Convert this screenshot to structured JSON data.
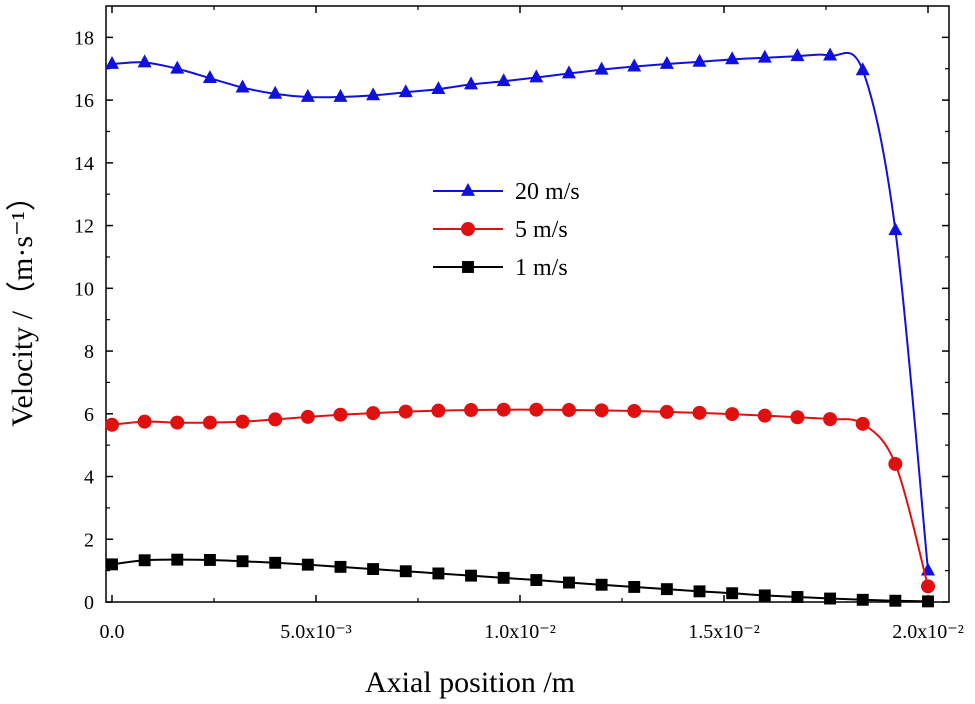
{
  "chart_data": {
    "type": "line",
    "title": "",
    "xlabel": "Axial position  /m",
    "ylabel": "Velocity  /（m·s⁻¹）",
    "xlim": [
      0,
      0.02
    ],
    "ylim": [
      0,
      19
    ],
    "x_ticks": [
      {
        "value": 0,
        "label": "0.0"
      },
      {
        "value": 0.005,
        "label": "5.0x10⁻³"
      },
      {
        "value": 0.01,
        "label": "1.0x10⁻²"
      },
      {
        "value": 0.015,
        "label": "1.5x10⁻²"
      },
      {
        "value": 0.02,
        "label": "2.0x10⁻²"
      }
    ],
    "y_ticks": [
      {
        "value": 0,
        "label": "0"
      },
      {
        "value": 2,
        "label": "2"
      },
      {
        "value": 4,
        "label": "4"
      },
      {
        "value": 6,
        "label": "6"
      },
      {
        "value": 8,
        "label": "8"
      },
      {
        "value": 10,
        "label": "10"
      },
      {
        "value": 12,
        "label": "12"
      },
      {
        "value": 14,
        "label": "14"
      },
      {
        "value": 16,
        "label": "16"
      },
      {
        "value": 18,
        "label": "18"
      }
    ],
    "legend_position": "center",
    "series": [
      {
        "name": "20 m/s",
        "color": "#1010e0",
        "marker": "triangle",
        "points": [
          [
            0,
            17.15
          ],
          [
            0.0008,
            17.2
          ],
          [
            0.0016,
            17.0
          ],
          [
            0.0024,
            16.7
          ],
          [
            0.0032,
            16.4
          ],
          [
            0.004,
            16.2
          ],
          [
            0.0048,
            16.1
          ],
          [
            0.0056,
            16.1
          ],
          [
            0.0064,
            16.15
          ],
          [
            0.0072,
            16.25
          ],
          [
            0.008,
            16.35
          ],
          [
            0.0088,
            16.5
          ],
          [
            0.0096,
            16.6
          ],
          [
            0.0104,
            16.72
          ],
          [
            0.0112,
            16.85
          ],
          [
            0.012,
            16.97
          ],
          [
            0.0128,
            17.07
          ],
          [
            0.0136,
            17.15
          ],
          [
            0.0144,
            17.22
          ],
          [
            0.0152,
            17.3
          ],
          [
            0.016,
            17.35
          ],
          [
            0.0168,
            17.4
          ],
          [
            0.0176,
            17.42
          ],
          [
            0.0184,
            16.95
          ],
          [
            0.0192,
            11.85
          ],
          [
            0.02,
            1.0
          ]
        ]
      },
      {
        "name": "5 m/s",
        "color": "#e01010",
        "marker": "circle",
        "points": [
          [
            0,
            5.65
          ],
          [
            0.0008,
            5.75
          ],
          [
            0.0016,
            5.72
          ],
          [
            0.0024,
            5.72
          ],
          [
            0.0032,
            5.75
          ],
          [
            0.004,
            5.82
          ],
          [
            0.0048,
            5.9
          ],
          [
            0.0056,
            5.97
          ],
          [
            0.0064,
            6.02
          ],
          [
            0.0072,
            6.07
          ],
          [
            0.008,
            6.1
          ],
          [
            0.0088,
            6.12
          ],
          [
            0.0096,
            6.13
          ],
          [
            0.0104,
            6.13
          ],
          [
            0.0112,
            6.12
          ],
          [
            0.012,
            6.11
          ],
          [
            0.0128,
            6.09
          ],
          [
            0.0136,
            6.06
          ],
          [
            0.0144,
            6.03
          ],
          [
            0.0152,
            5.99
          ],
          [
            0.016,
            5.94
          ],
          [
            0.0168,
            5.89
          ],
          [
            0.0176,
            5.83
          ],
          [
            0.0184,
            5.68
          ],
          [
            0.0192,
            4.4
          ],
          [
            0.02,
            0.5
          ]
        ]
      },
      {
        "name": "1 m/s",
        "color": "#000000",
        "marker": "square",
        "points": [
          [
            0,
            1.2
          ],
          [
            0.0008,
            1.33
          ],
          [
            0.0016,
            1.35
          ],
          [
            0.0024,
            1.34
          ],
          [
            0.0032,
            1.3
          ],
          [
            0.004,
            1.25
          ],
          [
            0.0048,
            1.19
          ],
          [
            0.0056,
            1.12
          ],
          [
            0.0064,
            1.05
          ],
          [
            0.0072,
            0.98
          ],
          [
            0.008,
            0.91
          ],
          [
            0.0088,
            0.84
          ],
          [
            0.0096,
            0.77
          ],
          [
            0.0104,
            0.7
          ],
          [
            0.0112,
            0.62
          ],
          [
            0.012,
            0.55
          ],
          [
            0.0128,
            0.48
          ],
          [
            0.0136,
            0.41
          ],
          [
            0.0144,
            0.34
          ],
          [
            0.0152,
            0.28
          ],
          [
            0.016,
            0.21
          ],
          [
            0.0168,
            0.16
          ],
          [
            0.0176,
            0.11
          ],
          [
            0.0184,
            0.07
          ],
          [
            0.0192,
            0.04
          ],
          [
            0.02,
            0.02
          ]
        ]
      }
    ]
  }
}
